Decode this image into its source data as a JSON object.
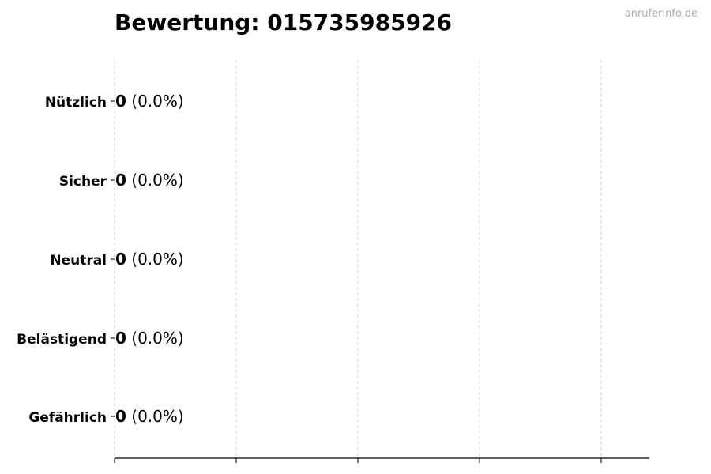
{
  "chart_data": {
    "type": "bar",
    "orientation": "horizontal",
    "title": "Bewertung: 015735985926",
    "watermark": "anruferinfo.de",
    "categories": [
      "Nützlich",
      "Sicher",
      "Neutral",
      "Belästigend",
      "Gefährlich"
    ],
    "values": [
      0,
      0,
      0,
      0,
      0
    ],
    "value_labels": [
      "0",
      "0",
      "0",
      "0",
      "0"
    ],
    "percent_labels": [
      "(0.0%)",
      "(0.0%)",
      "(0.0%)",
      "(0.0%)",
      "(0.0%)"
    ],
    "xlabel": "",
    "ylabel": "",
    "x_tick_labels_shown": false,
    "grid": "x-dashed",
    "bar_edge_color": "#000000",
    "grid_color": "#cccccc"
  }
}
